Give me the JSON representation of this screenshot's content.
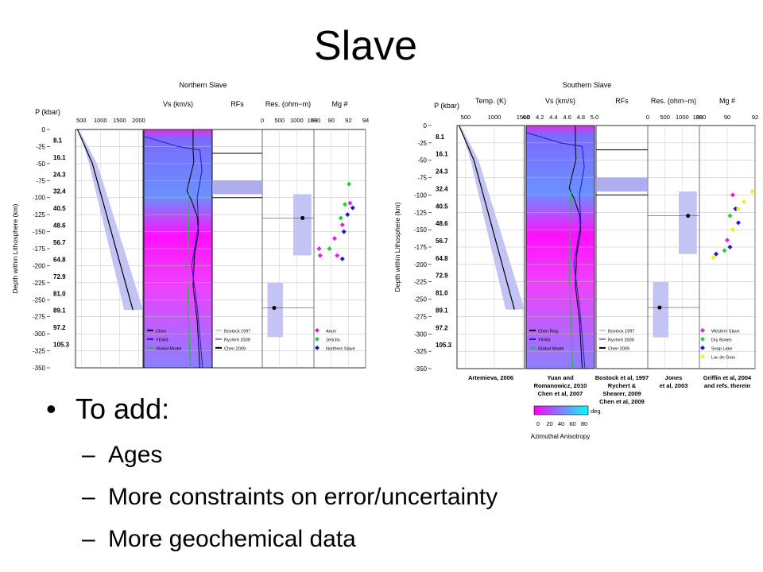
{
  "title": "Slave",
  "bullets": {
    "main": "To add:",
    "sub": [
      "Ages",
      "More constraints on error/uncertainty",
      "More geochemical data"
    ]
  },
  "figures": [
    {
      "title": "Northern Slave",
      "y_label": "Depth within Lithosphere (km)",
      "pressure_header": "P (kbar)",
      "depth_ticks": [
        0,
        -25,
        -50,
        -75,
        -100,
        -125,
        -150,
        -175,
        -200,
        -225,
        -250,
        -275,
        -300,
        -325,
        -350
      ],
      "pressures": [
        "8.1",
        "16.1",
        "24.3",
        "32.4",
        "40.5",
        "48.6",
        "56.7",
        "64.8",
        "72.9",
        "81.0",
        "89.1",
        "97.2",
        "105.3"
      ],
      "panels": [
        {
          "ticks": [
            "500",
            "1000",
            "1500",
            "2000"
          ]
        },
        {
          "header": "Vs (km/s)",
          "legend": [
            {
              "label": "Chen",
              "color": "#000000"
            },
            {
              "label": "YKW3",
              "color": "#1a1acc"
            },
            {
              "label": "Global Model",
              "color": "#22bb44"
            }
          ]
        },
        {
          "header": "RFs",
          "legend": [
            {
              "label": "Bostock 1997",
              "color": "#c8c8f0"
            },
            {
              "label": "Rychert 2009",
              "color": "#8080e0"
            },
            {
              "label": "Chen 2009",
              "color": "#000000"
            }
          ]
        },
        {
          "header": "Res. (ohm−m)",
          "ticks": [
            "0",
            "500",
            "1000",
            "1500"
          ]
        },
        {
          "header": "Mg #",
          "ticks": [
            "88",
            "90",
            "92",
            "94"
          ],
          "legend": [
            {
              "label": "Anuri",
              "color": "#e020e0"
            },
            {
              "label": "Jericho",
              "color": "#20d040"
            },
            {
              "label": "Northern Slave",
              "color": "#1a1acc"
            }
          ]
        }
      ]
    },
    {
      "title": "Southern Slave",
      "y_label": "Depth within Lithosphere (km)",
      "pressure_header": "P (kbar)",
      "depth_ticks": [
        0,
        -25,
        -50,
        -75,
        -100,
        -125,
        -150,
        -175,
        -200,
        -225,
        -250,
        -275,
        -300,
        -325,
        -350
      ],
      "pressures": [
        "8.1",
        "16.1",
        "24.3",
        "32.4",
        "40.5",
        "48.6",
        "56.7",
        "64.8",
        "72.9",
        "81.0",
        "89.1",
        "97.2",
        "105.3"
      ],
      "panels": [
        {
          "header": "Temp. (K)",
          "ticks": [
            "500",
            "1000",
            "1500"
          ],
          "caption": [
            "Artemieva, 2006"
          ]
        },
        {
          "header": "Vs (km/s)",
          "ticks": [
            "4.0",
            "4.2",
            "4.4",
            "4.6",
            "4.8",
            "5.0"
          ],
          "legend": [
            {
              "label": "Chen Reg.",
              "color": "#000000"
            },
            {
              "label": "YKW3",
              "color": "#1a1acc"
            },
            {
              "label": "Global Model",
              "color": "#22bb44"
            }
          ],
          "caption": [
            "Yuan and",
            "Romanowicz, 2010",
            "Chen et al, 2007"
          ]
        },
        {
          "header": "RFs",
          "legend": [
            {
              "label": "Bostock 1997",
              "color": "#c8c8f0"
            },
            {
              "label": "Rychert 2009",
              "color": "#8080e0"
            },
            {
              "label": "Chen 2009",
              "color": "#000000"
            }
          ],
          "caption": [
            "Bostock et al, 1997",
            "Rychert &",
            "Shearer, 2009",
            "Chen et al, 2009"
          ]
        },
        {
          "header": "Res. (ohm−m)",
          "ticks": [
            "0",
            "500",
            "1000",
            "1500"
          ],
          "caption": [
            "Jones",
            "et al, 2003"
          ]
        },
        {
          "header": "Mg #",
          "ticks": [
            "88",
            "90",
            "92"
          ],
          "legend": [
            {
              "label": "Western Slave",
              "color": "#e020e0"
            },
            {
              "label": "Dry Bones",
              "color": "#20d040"
            },
            {
              "label": "Snap Lake",
              "color": "#1a1acc"
            },
            {
              "label": "Lac de Gras",
              "color": "#f0f020"
            }
          ],
          "caption": [
            "Griffin et al, 2004",
            "and refs. therein"
          ]
        }
      ],
      "colorbar": {
        "ticks": [
          "0",
          "20",
          "40",
          "60",
          "80"
        ],
        "unit": "deg.",
        "label": "Azimuthal Anisotropy"
      }
    }
  ]
}
